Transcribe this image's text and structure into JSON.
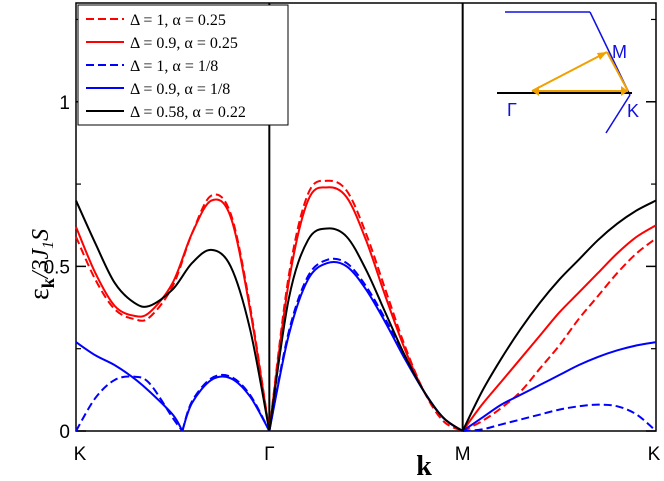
{
  "chart_data": {
    "type": "line",
    "title": "",
    "xlabel": "k",
    "ylabel": "ε_k /3J_1S",
    "ylabel_parts": {
      "main": "ε",
      "sub": "k",
      "rest": "/3J",
      "rest_sub": "1",
      "tail": "S"
    },
    "x_ticks": [
      "K",
      "Γ",
      "M",
      "K"
    ],
    "x_tick_positions": [
      0,
      1,
      2,
      3
    ],
    "xlim": [
      0,
      3
    ],
    "ylim": [
      0,
      1.3
    ],
    "y_ticks": [
      0,
      0.5,
      1
    ],
    "y_tick_labels": [
      "0",
      "0.5",
      "1"
    ],
    "grid": false,
    "legend_position": "top-left",
    "vertical_lines_at": [
      1,
      2
    ],
    "series": [
      {
        "name": "Δ = 1, α = 0.25",
        "color": "#ff0000",
        "dash": "dashed",
        "x": [
          0,
          0.1,
          0.2,
          0.3,
          0.38,
          0.5,
          0.6,
          0.7,
          0.8,
          0.9,
          1.0,
          1.1,
          1.2,
          1.3,
          1.4,
          1.5,
          1.6,
          1.7,
          1.8,
          1.9,
          2.0,
          2.1,
          2.2,
          2.3,
          2.4,
          2.5,
          2.6,
          2.7,
          2.8,
          2.9,
          3.0
        ],
        "values": [
          0.59,
          0.46,
          0.37,
          0.34,
          0.345,
          0.44,
          0.6,
          0.715,
          0.66,
          0.38,
          0.0,
          0.47,
          0.72,
          0.76,
          0.73,
          0.6,
          0.43,
          0.26,
          0.12,
          0.03,
          0.0,
          0.03,
          0.07,
          0.12,
          0.19,
          0.26,
          0.34,
          0.41,
          0.48,
          0.54,
          0.585
        ]
      },
      {
        "name": "Δ = 0.9, α = 0.25",
        "color": "#ff0000",
        "dash": "solid",
        "x": [
          0,
          0.1,
          0.2,
          0.3,
          0.38,
          0.5,
          0.6,
          0.7,
          0.8,
          0.9,
          1.0,
          1.1,
          1.2,
          1.3,
          1.4,
          1.5,
          1.6,
          1.7,
          1.8,
          1.9,
          2.0,
          2.1,
          2.2,
          2.3,
          2.4,
          2.5,
          2.6,
          2.7,
          2.8,
          2.9,
          3.0
        ],
        "values": [
          0.62,
          0.48,
          0.38,
          0.35,
          0.36,
          0.45,
          0.6,
          0.7,
          0.65,
          0.37,
          0.0,
          0.45,
          0.7,
          0.74,
          0.71,
          0.58,
          0.41,
          0.25,
          0.12,
          0.04,
          0.0,
          0.08,
          0.15,
          0.22,
          0.29,
          0.36,
          0.42,
          0.48,
          0.54,
          0.59,
          0.625
        ]
      },
      {
        "name": "Δ = 1, α = 1/8",
        "color": "#0000ff",
        "dash": "dashed",
        "x": [
          0,
          0.1,
          0.2,
          0.3,
          0.38,
          0.5,
          0.55,
          0.6,
          0.7,
          0.8,
          0.9,
          1.0,
          1.1,
          1.2,
          1.3,
          1.4,
          1.5,
          1.6,
          1.7,
          1.8,
          1.9,
          2.0,
          2.1,
          2.2,
          2.3,
          2.4,
          2.5,
          2.6,
          2.7,
          2.8,
          2.9,
          3.0
        ],
        "values": [
          0.0,
          0.1,
          0.155,
          0.165,
          0.145,
          0.04,
          0.0,
          0.09,
          0.16,
          0.165,
          0.11,
          0.0,
          0.3,
          0.47,
          0.52,
          0.51,
          0.44,
          0.34,
          0.23,
          0.12,
          0.04,
          0.0,
          0.005,
          0.02,
          0.035,
          0.05,
          0.065,
          0.075,
          0.08,
          0.075,
          0.05,
          0.0
        ]
      },
      {
        "name": "Δ = 0.9, α = 1/8",
        "color": "#0000ff",
        "dash": "solid",
        "x": [
          0,
          0.1,
          0.2,
          0.3,
          0.38,
          0.5,
          0.55,
          0.6,
          0.7,
          0.8,
          0.9,
          1.0,
          1.1,
          1.2,
          1.3,
          1.4,
          1.5,
          1.6,
          1.7,
          1.8,
          1.9,
          2.0,
          2.1,
          2.2,
          2.3,
          2.4,
          2.5,
          2.6,
          2.7,
          2.8,
          2.9,
          3.0
        ],
        "values": [
          0.27,
          0.23,
          0.2,
          0.16,
          0.12,
          0.05,
          0.0,
          0.085,
          0.155,
          0.16,
          0.105,
          0.0,
          0.29,
          0.46,
          0.51,
          0.5,
          0.43,
          0.33,
          0.22,
          0.12,
          0.04,
          0.0,
          0.04,
          0.08,
          0.11,
          0.14,
          0.17,
          0.2,
          0.225,
          0.245,
          0.26,
          0.27
        ]
      },
      {
        "name": "Δ = 0.58, α = 0.22",
        "color": "#000000",
        "dash": "solid",
        "x": [
          0,
          0.1,
          0.2,
          0.3,
          0.38,
          0.5,
          0.6,
          0.7,
          0.8,
          0.9,
          1.0,
          1.1,
          1.2,
          1.3,
          1.4,
          1.5,
          1.6,
          1.7,
          1.8,
          1.9,
          2.0,
          2.1,
          2.2,
          2.3,
          2.4,
          2.5,
          2.6,
          2.7,
          2.8,
          2.9,
          3.0
        ],
        "values": [
          0.7,
          0.57,
          0.45,
          0.39,
          0.38,
          0.43,
          0.51,
          0.55,
          0.5,
          0.31,
          0.0,
          0.4,
          0.58,
          0.615,
          0.59,
          0.49,
          0.36,
          0.23,
          0.12,
          0.04,
          0.0,
          0.12,
          0.22,
          0.31,
          0.39,
          0.46,
          0.52,
          0.58,
          0.63,
          0.67,
          0.7
        ]
      }
    ],
    "inset": {
      "labels": [
        "M",
        "Γ",
        "K"
      ],
      "line_color": "#1010e0",
      "arrow_color": "#f0a000"
    }
  }
}
